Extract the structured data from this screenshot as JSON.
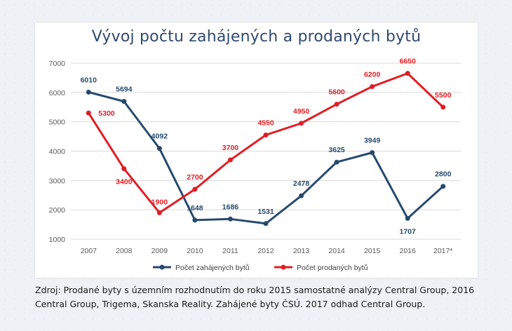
{
  "chart_data": {
    "type": "line",
    "title": "Vývoj počtu zahájených a prodaných bytů",
    "categories": [
      "2007",
      "2008",
      "2009",
      "2010",
      "2011",
      "2012",
      "2013",
      "2014",
      "2015",
      "2016",
      "2017*"
    ],
    "ylim": [
      1000,
      7000
    ],
    "yticks": [
      "1000",
      "2000",
      "3000",
      "4000",
      "5000",
      "6000",
      "7000"
    ],
    "grid": true,
    "legend_position": "bottom",
    "series": [
      {
        "name": "Počet zahájených bytů",
        "color": "#264a6e",
        "values": [
          6010,
          5694,
          4092,
          1648,
          1686,
          1531,
          2478,
          3625,
          3949,
          1707,
          2800
        ],
        "labels": [
          "6010",
          "5694",
          "4092",
          "1648",
          "1686",
          "1531",
          "2478",
          "3625",
          "3949",
          "1707",
          "2800"
        ]
      },
      {
        "name": "Počet prodaných bytů",
        "color": "#e01e25",
        "values": [
          5300,
          3400,
          1900,
          2700,
          3700,
          4550,
          4950,
          5600,
          6200,
          6650,
          5500
        ],
        "labels": [
          "5300",
          "3400",
          "1900",
          "2700",
          "3700",
          "4550",
          "4950",
          "5600",
          "6200",
          "6650",
          "5500"
        ]
      }
    ]
  },
  "source_note": "Zdroj: Prodané byty s územním rozhodnutím do roku 2015 samostatné analýzy Central Group, 2016 Central Group, Trigema, Skanska Reality. Zahájené byty ČSÚ. 2017 odhad Central Group."
}
